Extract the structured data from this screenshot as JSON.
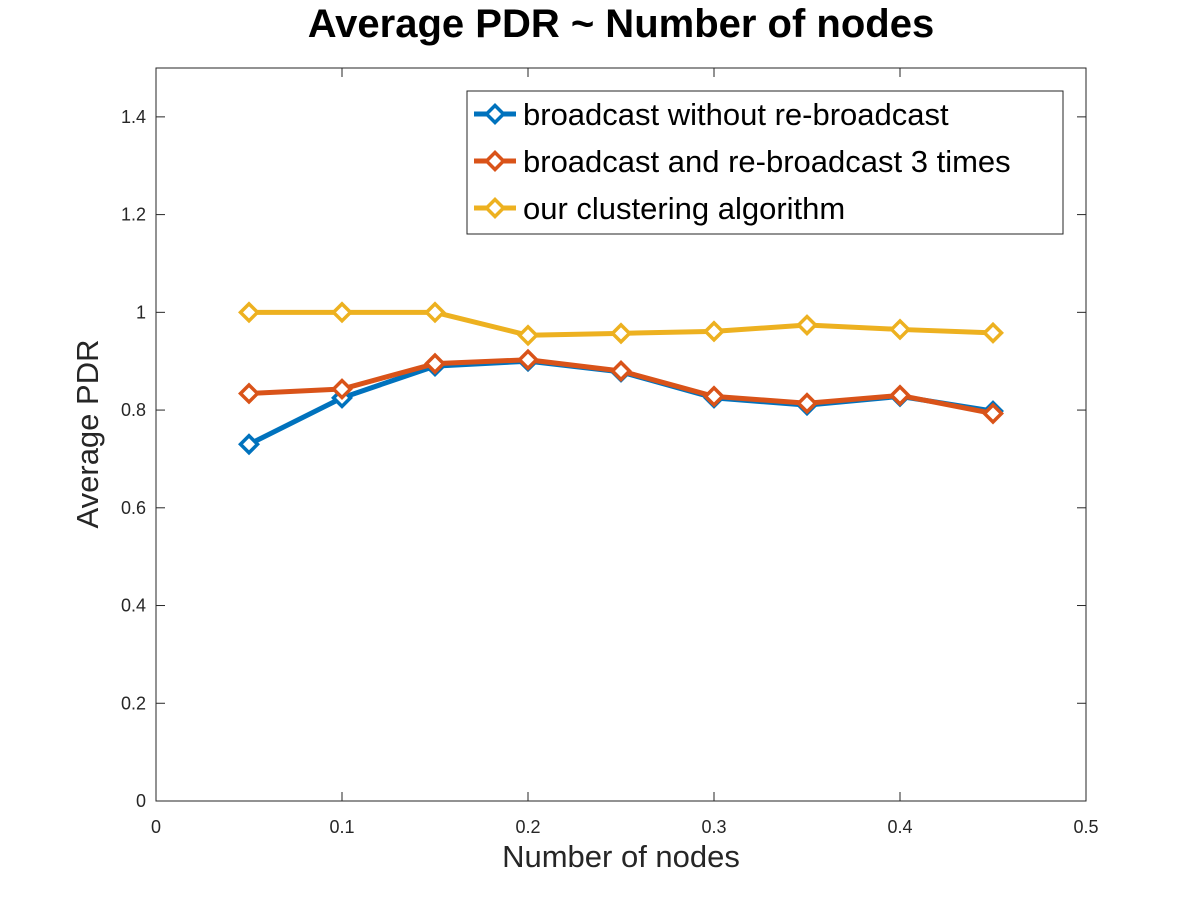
{
  "chart_data": {
    "type": "line",
    "title": "Average PDR ~ Number of nodes",
    "xlabel": "Number of nodes",
    "ylabel": "Average PDR",
    "xlim": [
      0,
      0.5
    ],
    "ylim": [
      0,
      1.5
    ],
    "xticks": [
      "0",
      "0.1",
      "0.2",
      "0.3",
      "0.4",
      "0.5"
    ],
    "yticks": [
      "0",
      "0.2",
      "0.4",
      "0.6",
      "0.8",
      "1",
      "1.2",
      "1.4"
    ],
    "x": [
      0.05,
      0.1,
      0.15,
      0.2,
      0.25,
      0.3,
      0.35,
      0.4,
      0.45
    ],
    "series": [
      {
        "name": "broadcast without re-broadcast",
        "color": "#0072BD",
        "marker": "diamond",
        "values": [
          0.73,
          0.825,
          0.89,
          0.9,
          0.878,
          0.825,
          0.81,
          0.828,
          0.798
        ]
      },
      {
        "name": "broadcast and re-broadcast 3 times",
        "color": "#D95319",
        "marker": "diamond",
        "values": [
          0.834,
          0.843,
          0.895,
          0.903,
          0.88,
          0.828,
          0.814,
          0.83,
          0.793
        ]
      },
      {
        "name": "our clustering algorithm",
        "color": "#EDB120",
        "marker": "diamond",
        "values": [
          1.0,
          1.0,
          1.0,
          0.953,
          0.957,
          0.961,
          0.974,
          0.965,
          0.958
        ]
      }
    ],
    "grid": false,
    "legend_position": "top-right"
  }
}
